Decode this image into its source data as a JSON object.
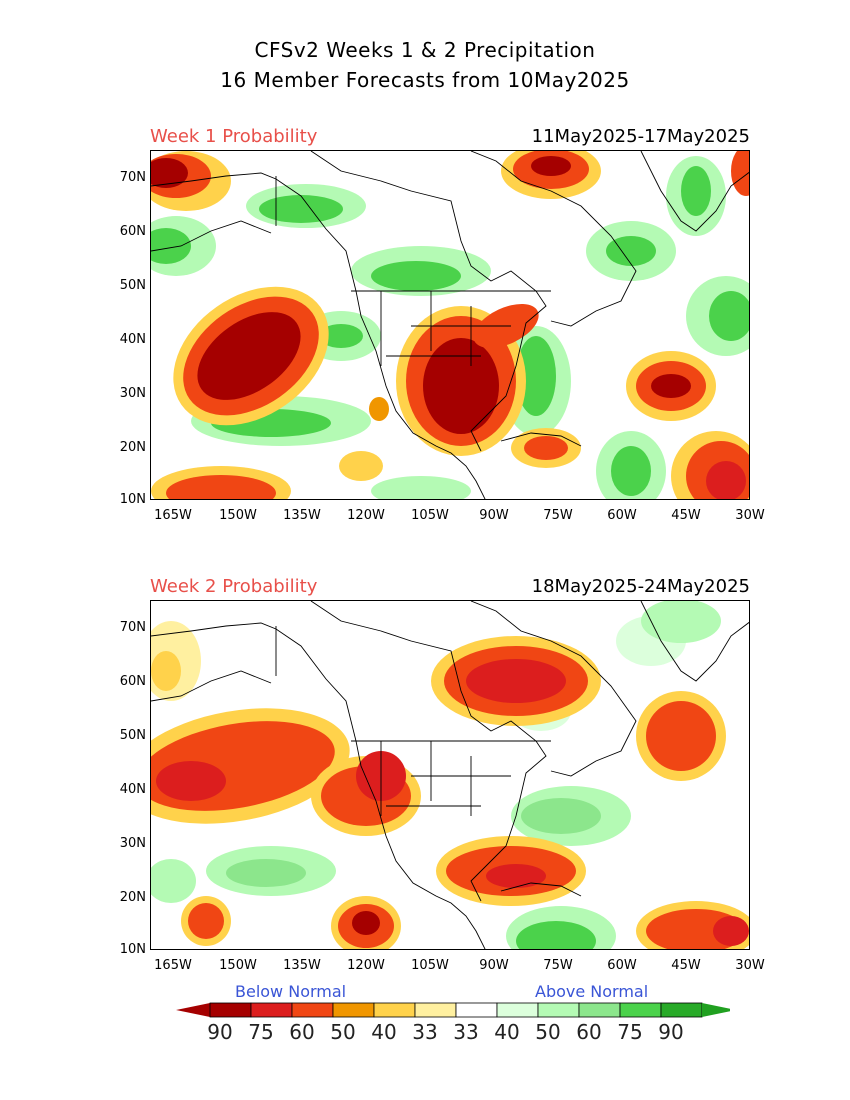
{
  "title": {
    "line1": "CFSv2 Weeks 1 & 2 Precipitation",
    "line2": "16 Member Forecasts from 10May2025"
  },
  "panels": [
    {
      "label": "Week 1 Probability",
      "dates": "11May2025-17May2025"
    },
    {
      "label": "Week 2 Probability",
      "dates": "18May2025-24May2025"
    }
  ],
  "axes": {
    "lat_labels": [
      "70N",
      "60N",
      "50N",
      "40N",
      "30N",
      "20N",
      "10N"
    ],
    "lon_labels": [
      "165W",
      "150W",
      "135W",
      "120W",
      "105W",
      "90W",
      "75W",
      "60W",
      "45W",
      "30W"
    ]
  },
  "legend": {
    "below_label": "Below Normal",
    "above_label": "Above Normal",
    "values": [
      "90",
      "75",
      "60",
      "50",
      "40",
      "33",
      "33",
      "40",
      "50",
      "60",
      "75",
      "90"
    ],
    "colors": [
      "#a50000",
      "#dc1e1e",
      "#f04614",
      "#f09600",
      "#ffd24b",
      "#fff0a0",
      "#ffffff",
      "#dcffdc",
      "#b4fab4",
      "#8ce68c",
      "#4bd24b",
      "#28aa28"
    ],
    "end_below_color": "#a50000",
    "end_above_color": "#20a020"
  },
  "colors": {
    "accent_label": "#e8504a",
    "legend_text": "#3a55d6"
  }
}
